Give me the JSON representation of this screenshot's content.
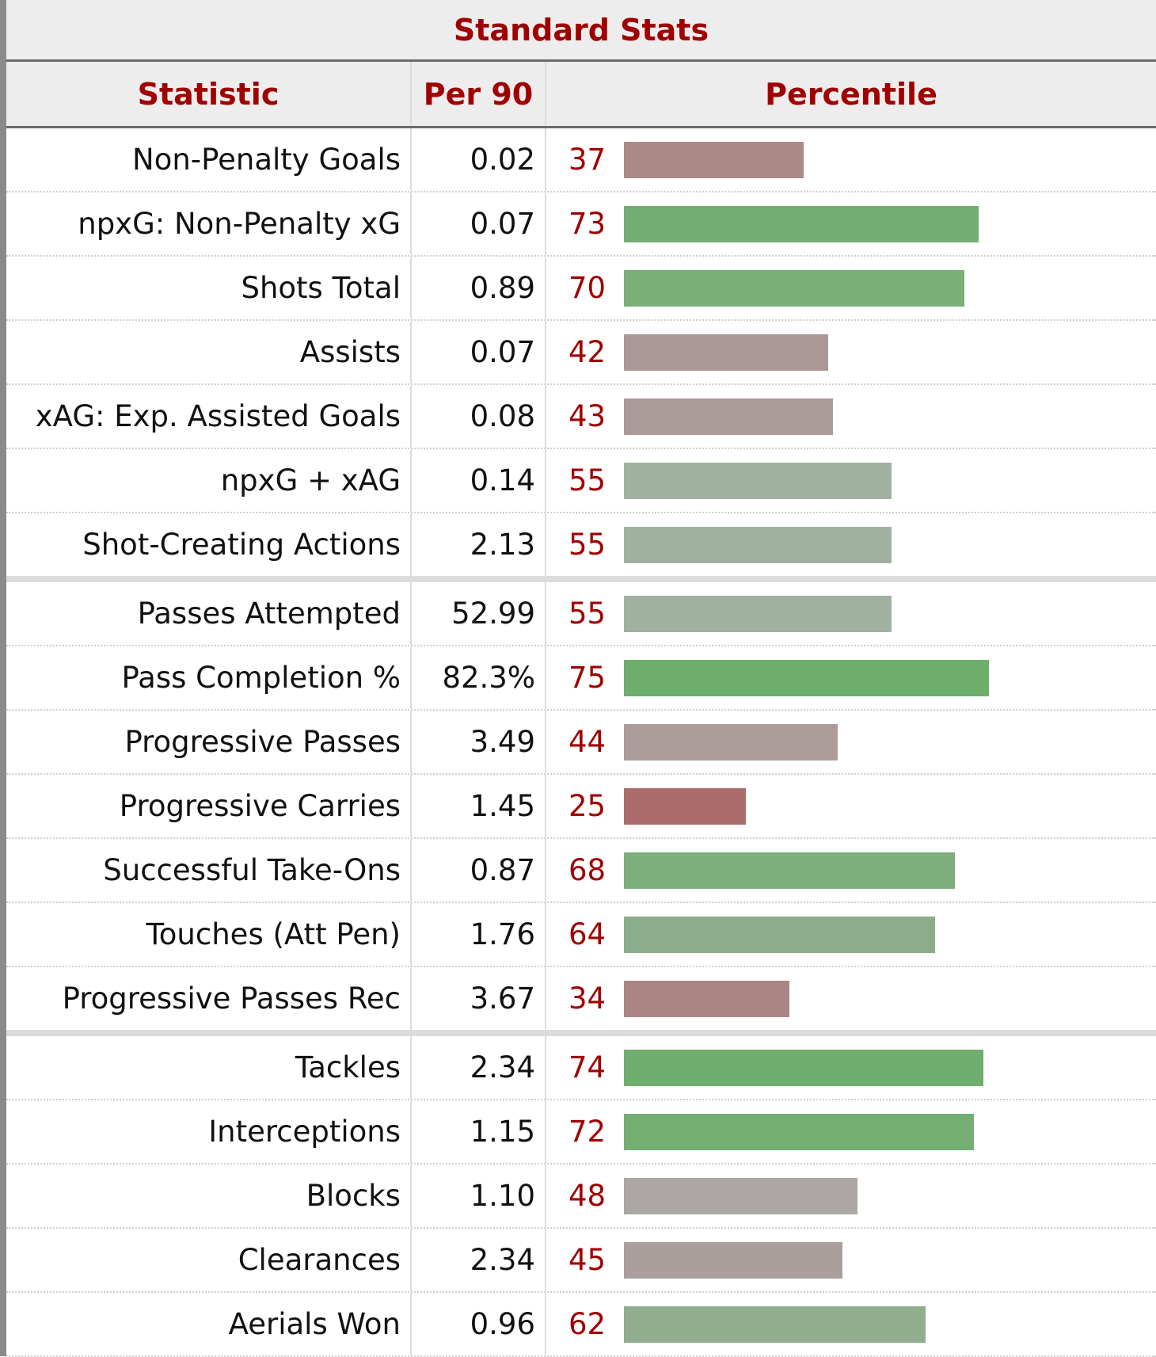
{
  "caption": "Standard Stats",
  "headers": {
    "statistic": "Statistic",
    "per90": "Per 90",
    "percentile": "Percentile"
  },
  "colors": {
    "good": "#6cae6a",
    "neutral": "#a6a6a6",
    "bad": "#a86464"
  },
  "sections": [
    [
      {
        "name": "Non-Penalty Goals",
        "per90": "0.02",
        "percentile": 37,
        "color": "#ab8a88"
      },
      {
        "name": "npxG: Non-Penalty xG",
        "per90": "0.07",
        "percentile": 73,
        "color": "#73ad74"
      },
      {
        "name": "Shots Total",
        "per90": "0.89",
        "percentile": 70,
        "color": "#7aaf79"
      },
      {
        "name": "Assists",
        "per90": "0.07",
        "percentile": 42,
        "color": "#ac9797"
      },
      {
        "name": "xAG: Exp. Assisted Goals",
        "per90": "0.08",
        "percentile": 43,
        "color": "#ab9a9a"
      },
      {
        "name": "npxG + xAG",
        "per90": "0.14",
        "percentile": 55,
        "color": "#a1b1a0"
      },
      {
        "name": "Shot-Creating Actions",
        "per90": "2.13",
        "percentile": 55,
        "color": "#a1b1a0"
      }
    ],
    [
      {
        "name": "Passes Attempted",
        "per90": "52.99",
        "percentile": 55,
        "color": "#a1b1a0"
      },
      {
        "name": "Pass Completion %",
        "per90": "82.3%",
        "percentile": 75,
        "color": "#6cae6a"
      },
      {
        "name": "Progressive Passes",
        "per90": "3.49",
        "percentile": 44,
        "color": "#ac9c9c"
      },
      {
        "name": "Progressive Carries",
        "per90": "1.45",
        "percentile": 25,
        "color": "#ab6d6c"
      },
      {
        "name": "Successful Take-Ons",
        "per90": "0.87",
        "percentile": 68,
        "color": "#7eae7d"
      },
      {
        "name": "Touches (Att Pen)",
        "per90": "1.76",
        "percentile": 64,
        "color": "#8bad89"
      },
      {
        "name": "Progressive Passes Rec",
        "per90": "3.67",
        "percentile": 34,
        "color": "#ab8584"
      }
    ],
    [
      {
        "name": "Tackles",
        "per90": "2.34",
        "percentile": 74,
        "color": "#70ae6f"
      },
      {
        "name": "Interceptions",
        "per90": "1.15",
        "percentile": 72,
        "color": "#74ae73"
      },
      {
        "name": "Blocks",
        "per90": "1.10",
        "percentile": 48,
        "color": "#aca6a5"
      },
      {
        "name": "Clearances",
        "per90": "2.34",
        "percentile": 45,
        "color": "#ab9f9e"
      },
      {
        "name": "Aerials Won",
        "per90": "0.96",
        "percentile": 62,
        "color": "#90ad8e"
      }
    ]
  ]
}
